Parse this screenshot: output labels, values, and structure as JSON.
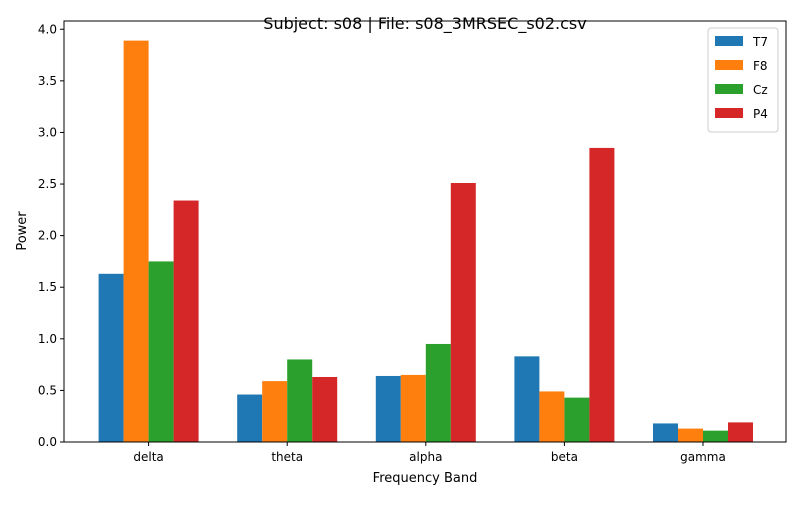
{
  "chart_data": {
    "type": "bar",
    "title": "Subject: s08 | File: s08_3MRSEC_s02.csv",
    "xlabel": "Frequency Band",
    "ylabel": "Power",
    "categories": [
      "delta",
      "theta",
      "alpha",
      "beta",
      "gamma"
    ],
    "ylim": [
      0,
      4.08
    ],
    "yticks": [
      "0.0",
      "0.5",
      "1.0",
      "1.5",
      "2.0",
      "2.5",
      "3.0",
      "3.5",
      "4.0"
    ],
    "grid": false,
    "legend_position": "top-right",
    "series": [
      {
        "name": "T7",
        "color": "#1f77b4",
        "values": [
          1.63,
          0.46,
          0.64,
          0.83,
          0.18
        ]
      },
      {
        "name": "F8",
        "color": "#ff7f0e",
        "values": [
          3.89,
          0.59,
          0.65,
          0.49,
          0.13
        ]
      },
      {
        "name": "Cz",
        "color": "#2ca02c",
        "values": [
          1.75,
          0.8,
          0.95,
          0.43,
          0.11
        ]
      },
      {
        "name": "P4",
        "color": "#d62728",
        "values": [
          2.34,
          0.63,
          2.51,
          2.85,
          0.19
        ]
      }
    ]
  }
}
